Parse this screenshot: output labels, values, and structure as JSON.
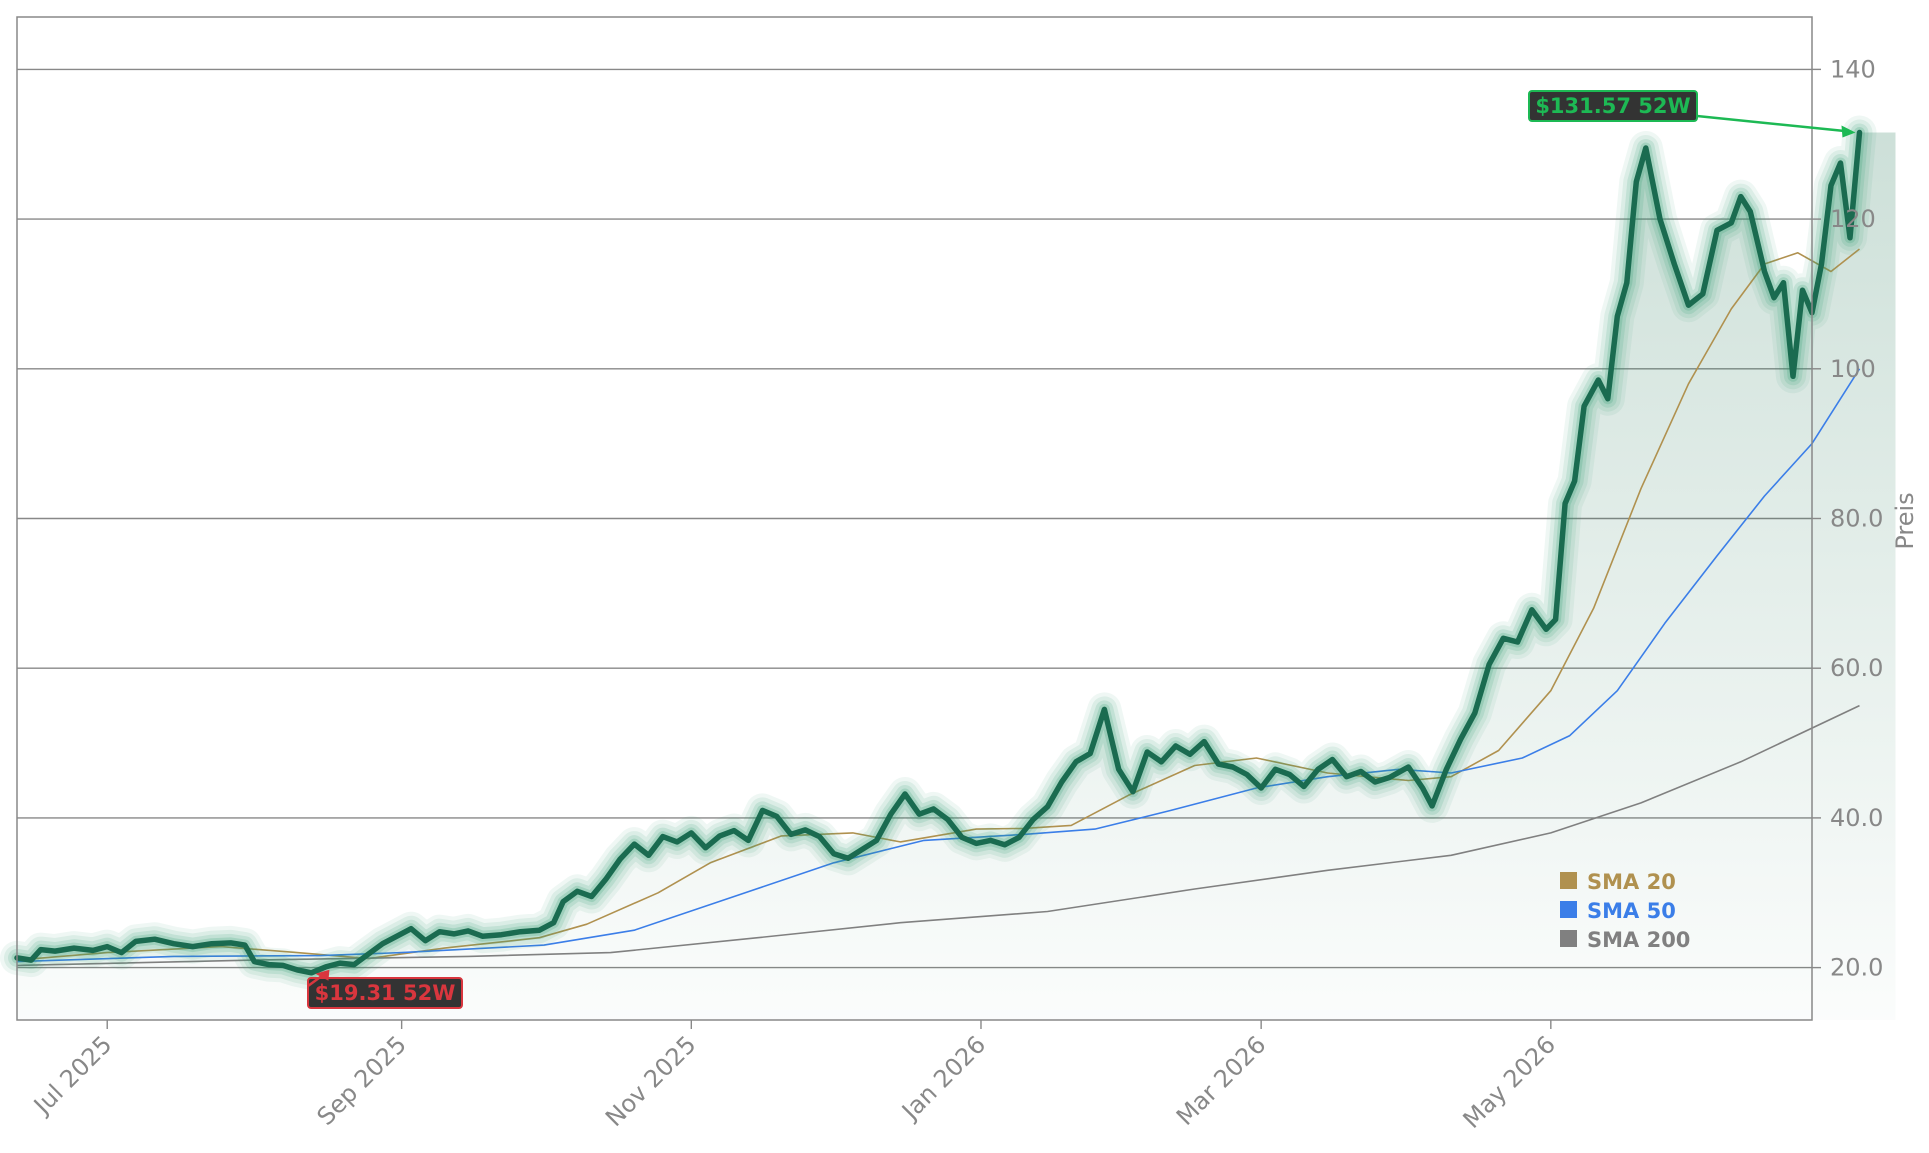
{
  "chart_data": {
    "type": "line",
    "ylabel": "Preis",
    "xlabel": "",
    "ylim": [
      13,
      147
    ],
    "xlim": [
      "2025-06-12",
      "2026-06-25"
    ],
    "y_ticks": [
      20,
      40,
      60,
      80,
      100,
      120,
      140
    ],
    "y_tick_labels": [
      "20.0",
      "40.0",
      "60.0",
      "80.0",
      "100",
      "120",
      "140"
    ],
    "x_ticks": [
      "2025-07-01",
      "2025-09-01",
      "2025-11-01",
      "2026-01-01",
      "2026-03-01",
      "2026-05-01"
    ],
    "x_tick_labels": [
      "Jul 2025",
      "Sep 2025",
      "Nov 2025",
      "Jan 2026",
      "Mar 2026",
      "May 2026"
    ],
    "grid": "horizontal",
    "legend_position": "lower-right",
    "colors": {
      "price": "#1a6b50",
      "price_glow": "#2e9a6e",
      "sma20": "#b0914f",
      "sma50": "#3b7ee8",
      "sma200": "#808080",
      "high": "#1db954",
      "low": "#d9363e",
      "grid": "#888888"
    },
    "series": [
      {
        "name": "Price",
        "points": [
          [
            "2025-06-12",
            21.3
          ],
          [
            "2025-06-15",
            21.0
          ],
          [
            "2025-06-17",
            22.4
          ],
          [
            "2025-06-20",
            22.2
          ],
          [
            "2025-06-24",
            22.6
          ],
          [
            "2025-06-28",
            22.3
          ],
          [
            "2025-07-01",
            22.8
          ],
          [
            "2025-07-04",
            22.0
          ],
          [
            "2025-07-07",
            23.5
          ],
          [
            "2025-07-11",
            23.8
          ],
          [
            "2025-07-15",
            23.2
          ],
          [
            "2025-07-19",
            22.8
          ],
          [
            "2025-07-23",
            23.2
          ],
          [
            "2025-07-27",
            23.3
          ],
          [
            "2025-07-30",
            23.0
          ],
          [
            "2025-08-01",
            20.8
          ],
          [
            "2025-08-04",
            20.4
          ],
          [
            "2025-08-07",
            20.3
          ],
          [
            "2025-08-10",
            19.7
          ],
          [
            "2025-08-13",
            19.31
          ],
          [
            "2025-08-16",
            20.1
          ],
          [
            "2025-08-19",
            20.6
          ],
          [
            "2025-08-22",
            20.4
          ],
          [
            "2025-08-25",
            21.8
          ],
          [
            "2025-08-28",
            23.2
          ],
          [
            "2025-08-31",
            24.2
          ],
          [
            "2025-09-03",
            25.2
          ],
          [
            "2025-09-06",
            23.6
          ],
          [
            "2025-09-09",
            24.8
          ],
          [
            "2025-09-12",
            24.5
          ],
          [
            "2025-09-15",
            24.9
          ],
          [
            "2025-09-18",
            24.2
          ],
          [
            "2025-09-22",
            24.4
          ],
          [
            "2025-09-26",
            24.8
          ],
          [
            "2025-09-30",
            25.0
          ],
          [
            "2025-10-03",
            26.0
          ],
          [
            "2025-10-05",
            28.8
          ],
          [
            "2025-10-08",
            30.2
          ],
          [
            "2025-10-11",
            29.5
          ],
          [
            "2025-10-14",
            31.8
          ],
          [
            "2025-10-17",
            34.5
          ],
          [
            "2025-10-20",
            36.5
          ],
          [
            "2025-10-23",
            35.0
          ],
          [
            "2025-10-26",
            37.5
          ],
          [
            "2025-10-29",
            36.8
          ],
          [
            "2025-11-01",
            38.0
          ],
          [
            "2025-11-04",
            36.0
          ],
          [
            "2025-11-07",
            37.6
          ],
          [
            "2025-11-10",
            38.3
          ],
          [
            "2025-11-13",
            37.0
          ],
          [
            "2025-11-16",
            41.0
          ],
          [
            "2025-11-19",
            40.2
          ],
          [
            "2025-11-22",
            37.8
          ],
          [
            "2025-11-25",
            38.4
          ],
          [
            "2025-11-28",
            37.5
          ],
          [
            "2025-12-01",
            35.2
          ],
          [
            "2025-12-04",
            34.6
          ],
          [
            "2025-12-07",
            35.8
          ],
          [
            "2025-12-10",
            37.0
          ],
          [
            "2025-12-13",
            40.5
          ],
          [
            "2025-12-16",
            43.2
          ],
          [
            "2025-12-19",
            40.5
          ],
          [
            "2025-12-22",
            41.2
          ],
          [
            "2025-12-25",
            39.8
          ],
          [
            "2025-12-28",
            37.4
          ],
          [
            "2025-12-31",
            36.6
          ],
          [
            "2026-01-03",
            37.0
          ],
          [
            "2026-01-06",
            36.4
          ],
          [
            "2026-01-09",
            37.4
          ],
          [
            "2026-01-12",
            39.8
          ],
          [
            "2026-01-15",
            41.5
          ],
          [
            "2026-01-18",
            44.8
          ],
          [
            "2026-01-21",
            47.5
          ],
          [
            "2026-01-24",
            48.6
          ],
          [
            "2026-01-27",
            54.5
          ],
          [
            "2026-01-30",
            46.5
          ],
          [
            "2026-02-02",
            43.5
          ],
          [
            "2026-02-05",
            48.8
          ],
          [
            "2026-02-08",
            47.5
          ],
          [
            "2026-02-11",
            49.6
          ],
          [
            "2026-02-14",
            48.5
          ],
          [
            "2026-02-17",
            50.2
          ],
          [
            "2026-02-20",
            47.2
          ],
          [
            "2026-02-23",
            46.8
          ],
          [
            "2026-02-26",
            45.8
          ],
          [
            "2026-03-01",
            44.0
          ],
          [
            "2026-03-04",
            46.5
          ],
          [
            "2026-03-07",
            45.8
          ],
          [
            "2026-03-10",
            44.2
          ],
          [
            "2026-03-13",
            46.5
          ],
          [
            "2026-03-16",
            47.8
          ],
          [
            "2026-03-19",
            45.5
          ],
          [
            "2026-03-22",
            46.2
          ],
          [
            "2026-03-25",
            44.8
          ],
          [
            "2026-03-28",
            45.4
          ],
          [
            "2026-04-01",
            46.8
          ],
          [
            "2026-04-04",
            44.0
          ],
          [
            "2026-04-06",
            41.6
          ],
          [
            "2026-04-09",
            46.5
          ],
          [
            "2026-04-12",
            50.5
          ],
          [
            "2026-04-15",
            54.0
          ],
          [
            "2026-04-18",
            60.5
          ],
          [
            "2026-04-21",
            64.0
          ],
          [
            "2026-04-24",
            63.5
          ],
          [
            "2026-04-27",
            67.8
          ],
          [
            "2026-04-30",
            65.2
          ],
          [
            "2026-05-02",
            66.5
          ],
          [
            "2026-05-04",
            82.0
          ],
          [
            "2026-05-06",
            85.0
          ],
          [
            "2026-05-08",
            95.0
          ],
          [
            "2026-05-11",
            98.5
          ],
          [
            "2026-05-13",
            96.0
          ],
          [
            "2026-05-15",
            107.0
          ],
          [
            "2026-05-17",
            111.5
          ],
          [
            "2026-05-19",
            125.0
          ],
          [
            "2026-05-21",
            129.5
          ],
          [
            "2026-05-24",
            120.0
          ],
          [
            "2026-05-27",
            114.0
          ],
          [
            "2026-05-30",
            108.5
          ],
          [
            "2026-06-02",
            110.0
          ],
          [
            "2026-06-05",
            118.5
          ],
          [
            "2026-06-08",
            119.5
          ],
          [
            "2026-06-10",
            123.0
          ],
          [
            "2026-06-12",
            121.0
          ],
          [
            "2026-06-15",
            113.0
          ],
          [
            "2026-06-17",
            109.5
          ],
          [
            "2026-06-19",
            111.5
          ],
          [
            "2026-06-21",
            99.0
          ],
          [
            "2026-06-23",
            110.5
          ],
          [
            "2026-06-25",
            107.5
          ],
          [
            "2026-06-27",
            114.0
          ],
          [
            "2026-06-29",
            124.5
          ],
          [
            "2026-07-01",
            127.5
          ],
          [
            "2026-07-03",
            117.5
          ],
          [
            "2026-07-05",
            131.57
          ]
        ]
      },
      {
        "name": "SMA 20",
        "points": [
          [
            "2025-06-12",
            21.0
          ],
          [
            "2025-07-01",
            22.0
          ],
          [
            "2025-07-25",
            22.8
          ],
          [
            "2025-08-10",
            22.0
          ],
          [
            "2025-08-25",
            21.2
          ],
          [
            "2025-09-10",
            22.6
          ],
          [
            "2025-09-30",
            24.0
          ],
          [
            "2025-10-10",
            25.8
          ],
          [
            "2025-10-25",
            30.0
          ],
          [
            "2025-11-05",
            34.0
          ],
          [
            "2025-11-20",
            37.6
          ],
          [
            "2025-12-05",
            38.0
          ],
          [
            "2025-12-15",
            36.8
          ],
          [
            "2025-12-31",
            38.5
          ],
          [
            "2026-01-10",
            38.6
          ],
          [
            "2026-01-20",
            39.0
          ],
          [
            "2026-02-01",
            43.0
          ],
          [
            "2026-02-15",
            47.0
          ],
          [
            "2026-02-28",
            48.0
          ],
          [
            "2026-03-15",
            46.0
          ],
          [
            "2026-04-01",
            45.0
          ],
          [
            "2026-04-10",
            45.5
          ],
          [
            "2026-04-20",
            49.0
          ],
          [
            "2026-05-01",
            57.0
          ],
          [
            "2026-05-10",
            68.0
          ],
          [
            "2026-05-20",
            84.0
          ],
          [
            "2026-05-30",
            98.0
          ],
          [
            "2026-06-08",
            108.0
          ],
          [
            "2026-06-15",
            114.0
          ],
          [
            "2026-06-22",
            115.5
          ],
          [
            "2026-06-29",
            113.0
          ],
          [
            "2026-07-05",
            116.0
          ]
        ]
      },
      {
        "name": "SMA 50",
        "points": [
          [
            "2025-06-12",
            20.8
          ],
          [
            "2025-07-15",
            21.5
          ],
          [
            "2025-08-15",
            21.6
          ],
          [
            "2025-09-01",
            22.0
          ],
          [
            "2025-10-01",
            23.0
          ],
          [
            "2025-10-20",
            25.0
          ],
          [
            "2025-11-10",
            29.5
          ],
          [
            "2025-12-01",
            34.0
          ],
          [
            "2025-12-20",
            37.0
          ],
          [
            "2026-01-10",
            37.8
          ],
          [
            "2026-01-25",
            38.5
          ],
          [
            "2026-02-10",
            41.0
          ],
          [
            "2026-02-28",
            44.0
          ],
          [
            "2026-03-15",
            45.5
          ],
          [
            "2026-03-30",
            46.5
          ],
          [
            "2026-04-10",
            46.0
          ],
          [
            "2026-04-25",
            48.0
          ],
          [
            "2026-05-05",
            51.0
          ],
          [
            "2026-05-15",
            57.0
          ],
          [
            "2026-05-25",
            66.0
          ],
          [
            "2026-06-05",
            75.0
          ],
          [
            "2026-06-15",
            83.0
          ],
          [
            "2026-06-25",
            90.0
          ],
          [
            "2026-07-05",
            100.0
          ]
        ]
      },
      {
        "name": "SMA 200",
        "points": [
          [
            "2025-06-12",
            20.3
          ],
          [
            "2025-08-01",
            21.0
          ],
          [
            "2025-09-15",
            21.5
          ],
          [
            "2025-10-15",
            22.0
          ],
          [
            "2025-11-15",
            24.0
          ],
          [
            "2025-12-15",
            26.0
          ],
          [
            "2026-01-15",
            27.5
          ],
          [
            "2026-02-15",
            30.5
          ],
          [
            "2026-03-15",
            33.0
          ],
          [
            "2026-04-10",
            35.0
          ],
          [
            "2026-05-01",
            38.0
          ],
          [
            "2026-05-20",
            42.0
          ],
          [
            "2026-06-10",
            47.5
          ],
          [
            "2026-07-05",
            55.0
          ]
        ]
      }
    ],
    "annotations": [
      {
        "label": "$131.57 52W",
        "date": "2026-07-05",
        "value": 131.57,
        "kind": "high"
      },
      {
        "label": "$19.31 52W",
        "date": "2025-08-13",
        "value": 19.31,
        "kind": "low"
      }
    ],
    "legend": [
      {
        "label": "SMA 20",
        "color": "#b0914f"
      },
      {
        "label": "SMA 50",
        "color": "#3b7ee8"
      },
      {
        "label": "SMA 200",
        "color": "#808080"
      }
    ]
  }
}
